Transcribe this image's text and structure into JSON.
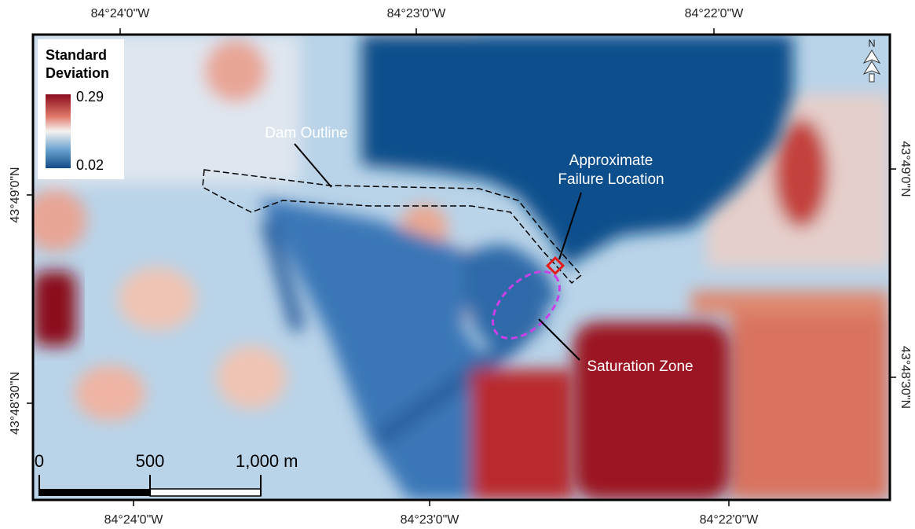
{
  "map": {
    "top_labels": [
      "84°24'0\"W",
      "84°23'0\"W",
      "84°22'0\"W"
    ],
    "bottom_labels": [
      "84°24'0\"W",
      "84°23'0\"W",
      "84°22'0\"W"
    ],
    "left_labels": [
      "43°49'0\"N",
      "43°48'30\"N"
    ],
    "right_labels": [
      "43°49'0\"N",
      "43°48'30\"N"
    ],
    "legend": {
      "title_lines": [
        "Standard",
        "Deviation"
      ],
      "max": 0.29,
      "min": 0.02
    },
    "annotations": {
      "dam": "Dam Outline",
      "failure_lines": [
        "Approximate",
        "Failure Location"
      ],
      "saturation": "Saturation Zone"
    },
    "scale_bar": {
      "labels": [
        "0",
        "500",
        "1,000 m"
      ]
    },
    "north_label": "N"
  }
}
